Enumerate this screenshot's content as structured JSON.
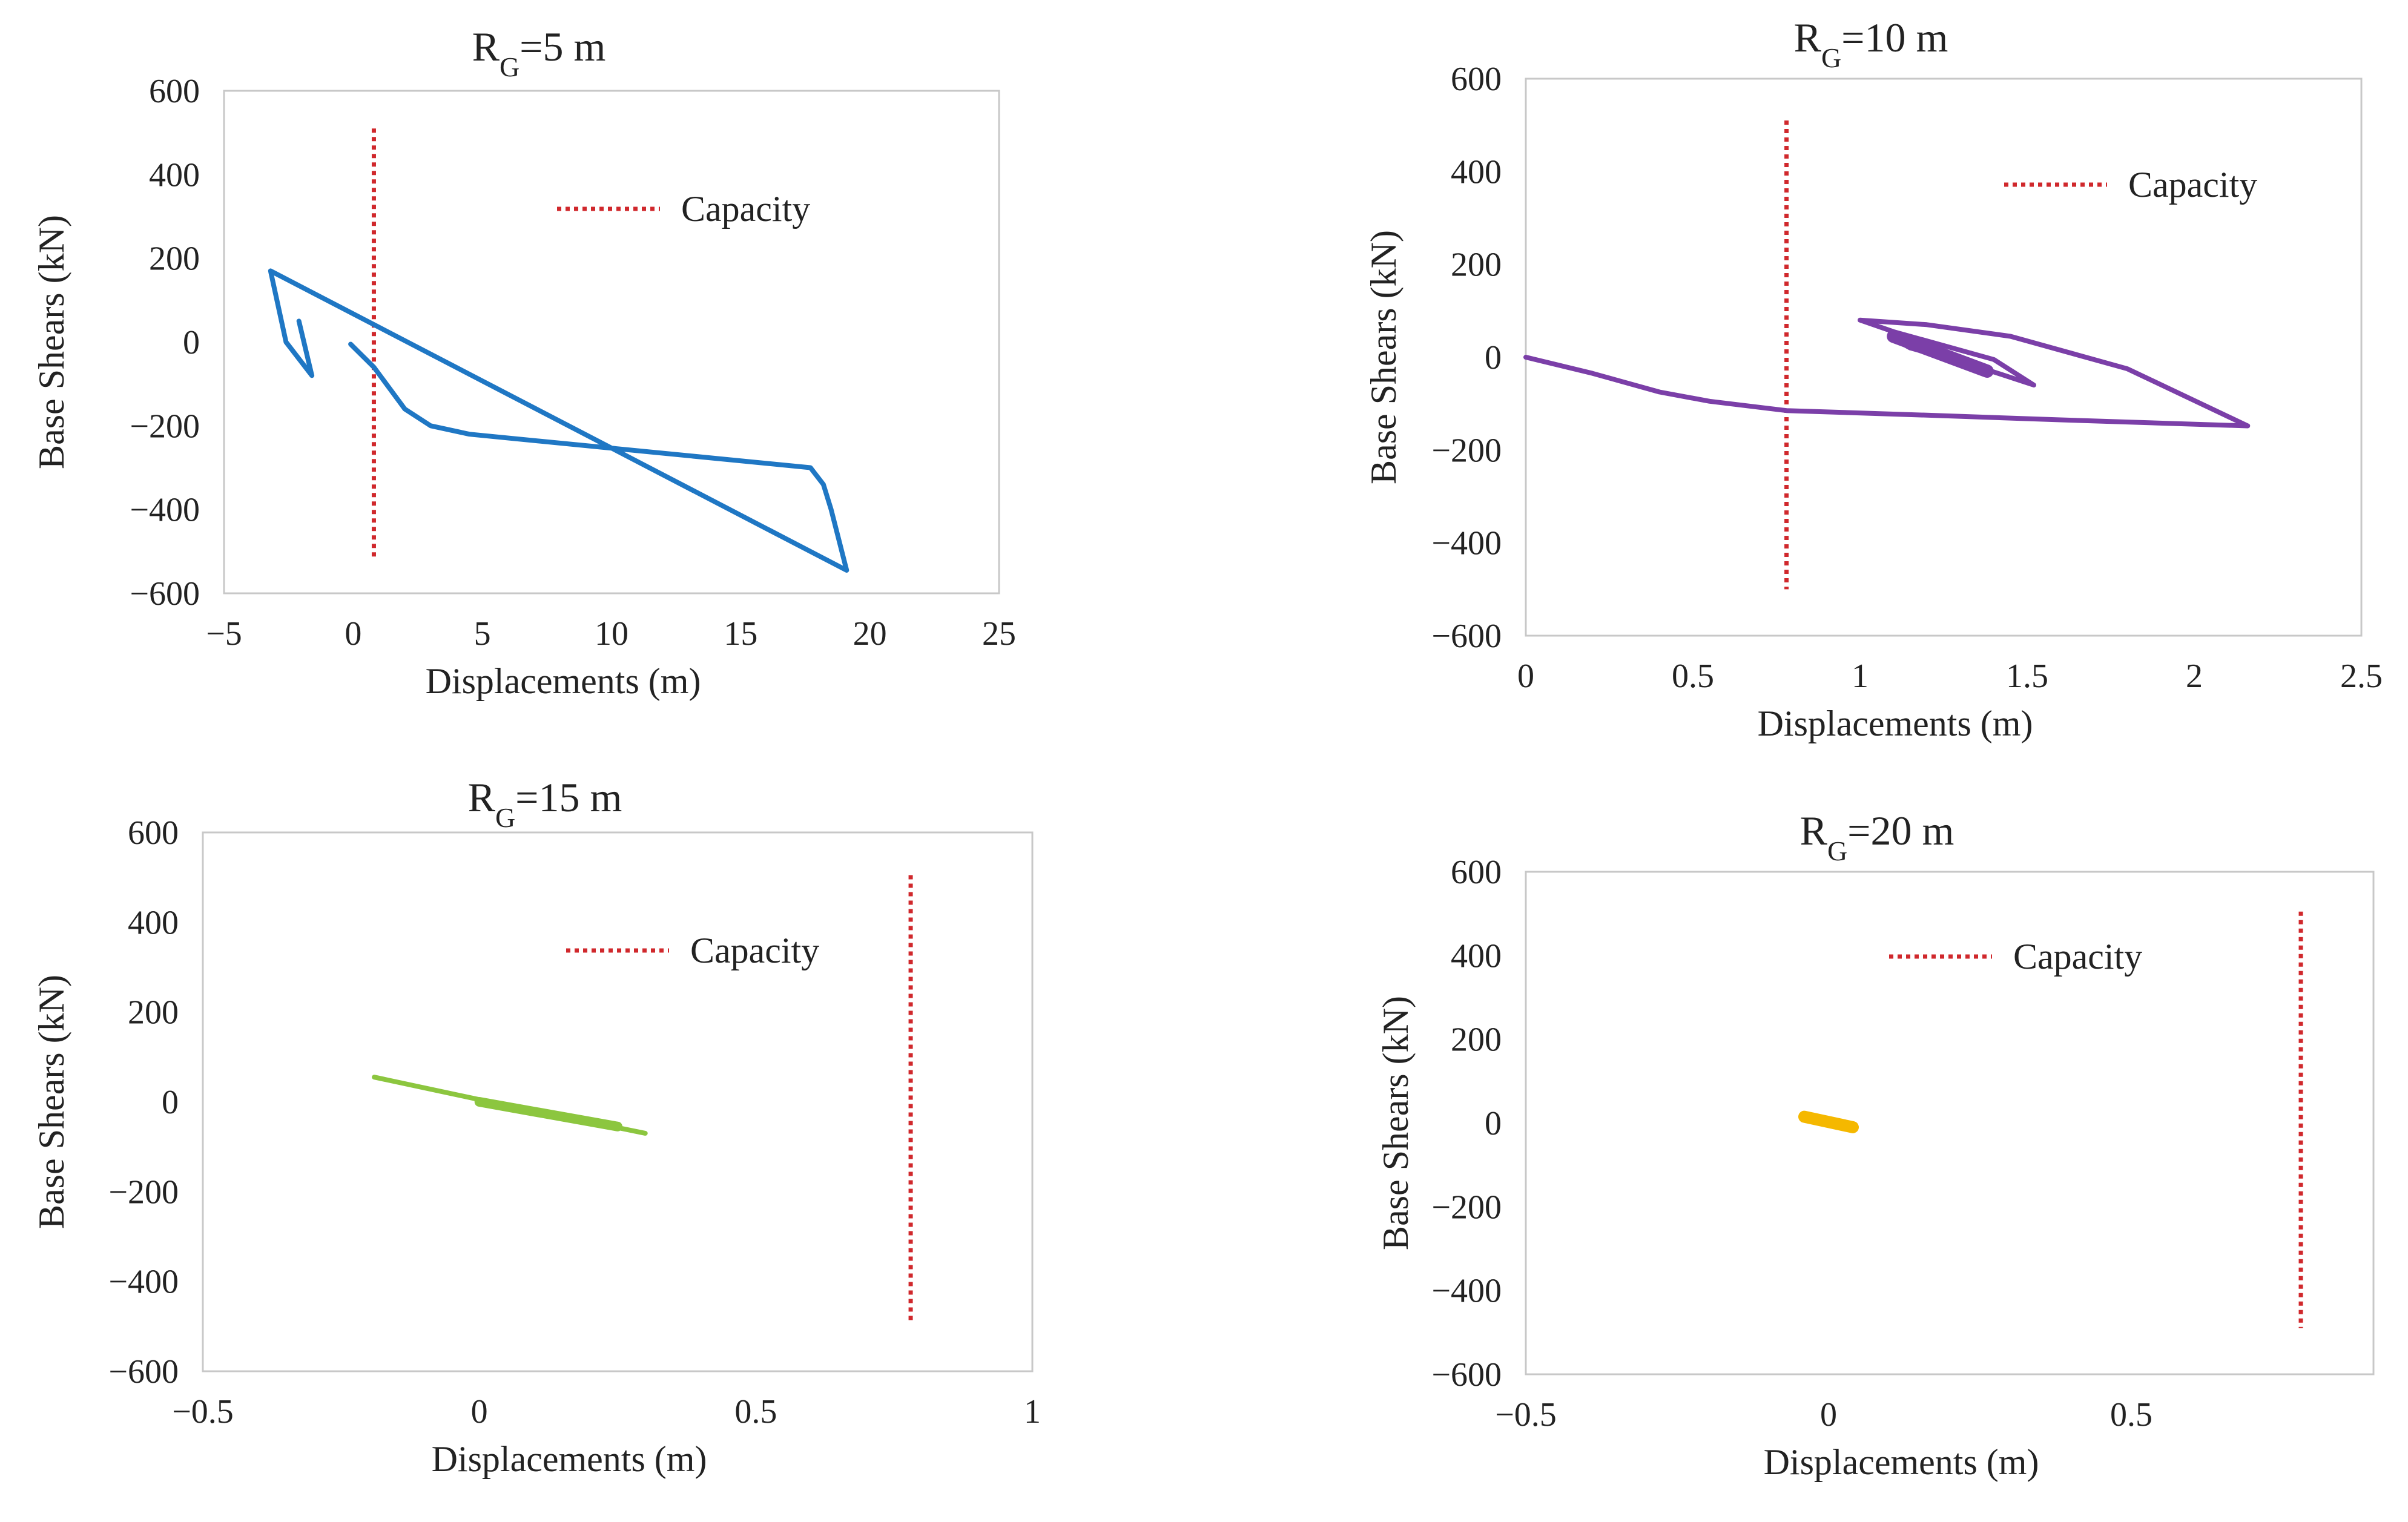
{
  "chart_data": [
    {
      "type": "line",
      "title": "R_G=5 m",
      "title_main": "R",
      "title_sub": "G",
      "title_rest": "=5 m",
      "xlabel": "Displacements (m)",
      "ylabel": "Base Shears (kN)",
      "xlim": [
        -5,
        25
      ],
      "ylim": [
        -600,
        600
      ],
      "xticks": [
        -5,
        0,
        5,
        10,
        15,
        20,
        25
      ],
      "yticks": [
        600,
        400,
        200,
        0,
        -200,
        -400,
        -600
      ],
      "xtick_labels": [
        "−5",
        "0",
        "5",
        "10",
        "15",
        "20",
        "25"
      ],
      "ytick_labels": [
        "600",
        "400",
        "200",
        "0",
        "−200",
        "−400",
        "−600"
      ],
      "legend": {
        "label": "Capacity",
        "position": "top-right"
      },
      "capacity": {
        "x": 0.8,
        "y_range": [
          -520,
          510
        ],
        "color": "#d0282c"
      },
      "series": [
        {
          "name": "response",
          "color": "#1f77c4",
          "width": 8,
          "x": [
            -0.1,
            0.8,
            2.0,
            3.0,
            4.5,
            17.7,
            18.2,
            18.5,
            19.1,
            -3.2,
            -2.6,
            -1.6,
            -2.1
          ],
          "y": [
            -5,
            -60,
            -160,
            -200,
            -220,
            -300,
            -340,
            -400,
            -545,
            170,
            0,
            -80,
            50
          ]
        }
      ]
    },
    {
      "type": "line",
      "title": "R_G=10 m",
      "title_main": "R",
      "title_sub": "G",
      "title_rest": "=10 m",
      "xlabel": "Displacements (m)",
      "ylabel": "Base Shears (kN)",
      "xlim": [
        0,
        2.5
      ],
      "ylim": [
        -600,
        600
      ],
      "xticks": [
        0,
        0.5,
        1,
        1.5,
        2,
        2.5
      ],
      "yticks": [
        600,
        400,
        200,
        0,
        -200,
        -400,
        -600
      ],
      "xtick_labels": [
        "0",
        "0.5",
        "1",
        "1.5",
        "2",
        "2.5"
      ],
      "ytick_labels": [
        "600",
        "400",
        "200",
        "0",
        "−200",
        "−400",
        "−600"
      ],
      "legend": {
        "label": "Capacity",
        "position": "top-right"
      },
      "capacity": {
        "x": 0.78,
        "y_range": [
          -500,
          510
        ],
        "color": "#d0282c"
      },
      "series": [
        {
          "name": "response",
          "color": "#7b3fa8",
          "width": 8,
          "x": [
            0,
            0.2,
            0.4,
            0.55,
            0.78,
            1.2,
            1.6,
            2.16,
            1.8,
            1.45,
            1.2,
            1.0,
            1.1,
            1.4,
            1.52,
            1.35,
            1.15,
            1.1
          ],
          "y": [
            0,
            -35,
            -75,
            -95,
            -115,
            -125,
            -135,
            -148,
            -25,
            45,
            70,
            80,
            55,
            -5,
            -60,
            -20,
            20,
            40
          ]
        },
        {
          "name": "response-dense",
          "color": "#7b3fa8",
          "width": 22,
          "x": [
            1.1,
            1.38
          ],
          "y": [
            45,
            -30
          ]
        }
      ]
    },
    {
      "type": "line",
      "title": "R_G=15 m",
      "title_main": "R",
      "title_sub": "G",
      "title_rest": "=15 m",
      "xlabel": "Displacements (m)",
      "ylabel": "Base Shears (kN)",
      "xlim": [
        -0.5,
        1
      ],
      "ylim": [
        -600,
        600
      ],
      "xticks": [
        -0.5,
        0,
        0.5,
        1
      ],
      "yticks": [
        600,
        400,
        200,
        0,
        -200,
        -400,
        -600
      ],
      "xtick_labels": [
        "−0.5",
        "0",
        "0.5",
        "1"
      ],
      "ytick_labels": [
        "600",
        "400",
        "200",
        "0",
        "−200",
        "−400",
        "−600"
      ],
      "legend": {
        "label": "Capacity",
        "position": "top-right"
      },
      "capacity": {
        "x": 0.78,
        "y_range": [
          -490,
          505
        ],
        "color": "#d0282c"
      },
      "series": [
        {
          "name": "response",
          "color": "#8cc63f",
          "width": 8,
          "x": [
            -0.19,
            0.0,
            0.3
          ],
          "y": [
            55,
            5,
            -70
          ]
        },
        {
          "name": "response-dense",
          "color": "#8cc63f",
          "width": 16,
          "x": [
            0.0,
            0.25
          ],
          "y": [
            0,
            -55
          ]
        }
      ]
    },
    {
      "type": "line",
      "title": "R_G=20 m",
      "title_main": "R",
      "title_sub": "G",
      "title_rest": "=20 m",
      "xlabel": "Displacements (m)",
      "ylabel": "Base Shears (kN)",
      "xlim": [
        -0.5,
        0.9
      ],
      "ylim": [
        -600,
        600
      ],
      "xticks": [
        -0.5,
        0,
        0.5
      ],
      "yticks": [
        600,
        400,
        200,
        0,
        -200,
        -400,
        -600
      ],
      "xtick_labels": [
        "−0.5",
        "0",
        "0.5"
      ],
      "ytick_labels": [
        "600",
        "400",
        "200",
        "0",
        "−200",
        "−400",
        "−600"
      ],
      "legend": {
        "label": "Capacity",
        "position": "top-center"
      },
      "capacity": {
        "x": 0.78,
        "y_range": [
          -490,
          505
        ],
        "color": "#d0282c"
      },
      "series": [
        {
          "name": "response",
          "color": "#f5b800",
          "width": 20,
          "x": [
            -0.04,
            0.04
          ],
          "y": [
            15,
            -10
          ]
        }
      ]
    }
  ]
}
